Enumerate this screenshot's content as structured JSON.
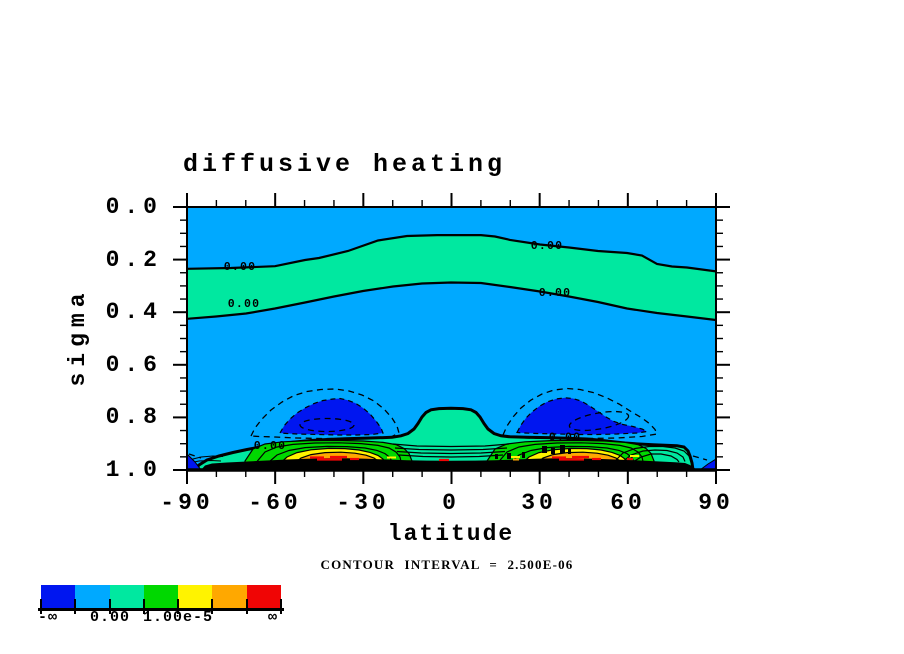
{
  "title": "diffusive heating",
  "axes": {
    "y_label": "sigma",
    "x_label": "latitude",
    "y_ticks": [
      "0.0",
      "0.2",
      "0.4",
      "0.6",
      "0.8",
      "1.0"
    ],
    "x_ticks": [
      "-90",
      "-60",
      "-30",
      "0",
      "30",
      "60",
      "90"
    ]
  },
  "caption": "CONTOUR INTERVAL = 2.500E-06",
  "colorbar": {
    "colors": [
      "#0016f0",
      "#00a9ff",
      "#00e8a0",
      "#00d800",
      "#fff300",
      "#ffa800",
      "#f00505"
    ],
    "labels": [
      "-∞",
      "0.00",
      "1.00e-5",
      "∞"
    ]
  },
  "plot": {
    "contour_labels": [
      "0.00",
      "0.00",
      "0.00",
      "0.00",
      "0.00",
      "0.00"
    ]
  },
  "chart_data": {
    "type": "heatmap",
    "subtype": "filled-contour",
    "title": "diffusive heating",
    "xlabel": "latitude",
    "ylabel": "sigma",
    "xlim": [
      -90,
      90
    ],
    "x_major_tick_step": 30,
    "x_minor_tick_step": 10,
    "ylim": [
      0.0,
      1.0
    ],
    "y_axis_inverted_display": "sigma 0.0 at top, 1.0 at bottom",
    "y_major_tick_step": 0.2,
    "y_minor_tick_step": 0.05,
    "contour_interval": 2.5e-06,
    "colorbar": {
      "segment_colors": [
        "#0016f0",
        "#00a9ff",
        "#00e8a0",
        "#00d800",
        "#fff300",
        "#ffa800",
        "#f00505"
      ],
      "boundary_labels": {
        "left_end": "-inf",
        "boundary_2": "0.00",
        "boundary_4": "1.00e-5",
        "right_end": "inf"
      }
    },
    "labeled_contours": [
      {
        "value": "0.00",
        "lat": -72,
        "sigma": 0.22
      },
      {
        "value": "0.00",
        "lat": -71,
        "sigma": 0.37
      },
      {
        "value": "0.00",
        "lat": 32,
        "sigma": 0.14
      },
      {
        "value": "0.00",
        "lat": 34,
        "sigma": 0.33
      },
      {
        "value": "0.00",
        "lat": -62,
        "sigma": 0.9
      },
      {
        "value": "0.00",
        "lat": 38,
        "sigma": 0.86
      }
    ],
    "features": [
      "background field slightly negative (light blue) through most of the free atmosphere",
      "zero band (spring green, 0 to +interval) spans all latitudes between sigma ~0.23-0.42 at the poles rising to ~0.11-0.29 over the equator, bounded by two solid 0.00 contours",
      "thick 0.00 contour near the surface at sigma ~0.87-0.88 on the flanks, dropping to ~0.99 at the poles",
      "equatorial spring-green column between lat ~-12 and +12 reaching up to sigma ~0.765",
      "negative minima (dark blue, < -interval) centered near lat -38 and +40 at sigma ~0.73-0.86, enclosed by dashed (negative) contours",
      "strong near-surface heating maxima centered near lat -38 and +38: nested green/yellow/orange/red bands (values up to > 1.5e-5) above a saturated black contour-dense layer at sigma ~0.96-1.0",
      "small dark-blue wedges at the bottom corners near lat -90 and +90"
    ]
  }
}
